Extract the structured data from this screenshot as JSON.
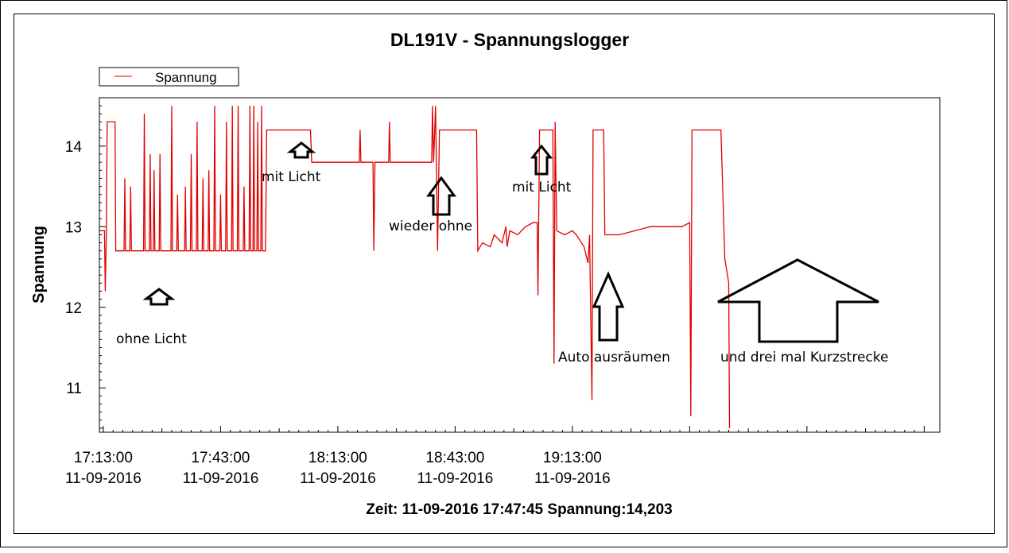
{
  "chart_data": {
    "type": "line",
    "title": "DL191V - Spannungslogger",
    "ylabel": "Spannung",
    "legend": {
      "entries": [
        "Spannung"
      ],
      "placement": "top-left"
    },
    "series_color": "#e00000",
    "ylim": [
      10.45,
      14.6
    ],
    "yticks": [
      11,
      12,
      13,
      14
    ],
    "xlim_minutes": [
      -1,
      214
    ],
    "xticks": [
      {
        "time": "17:13:00",
        "date": "11-09-2016",
        "minute": 0
      },
      {
        "time": "17:43:00",
        "date": "11-09-2016",
        "minute": 30
      },
      {
        "time": "18:13:00",
        "date": "11-09-2016",
        "minute": 60
      },
      {
        "time": "18:43:00",
        "date": "11-09-2016",
        "minute": 90
      },
      {
        "time": "19:13:00",
        "date": "11-09-2016",
        "minute": 120
      }
    ],
    "grid": false,
    "status_text": "Zeit: 11-09-2016 17:47:45 Spannung:14,203",
    "series": [
      {
        "name": "Spannung",
        "x": [
          -1,
          0,
          0.5,
          1,
          1.2,
          1.6,
          3,
          3.2,
          3.5,
          5,
          6,
          6.3,
          6.8,
          10,
          12,
          13.8,
          14.3,
          14.8,
          17.5,
          17.8,
          18.2,
          22,
          22.4,
          22.8,
          26,
          26.3,
          26.6,
          29,
          31,
          31.3,
          33,
          35,
          35.3,
          37,
          37.3,
          40,
          41,
          41.3,
          41.7,
          52,
          53,
          53.3,
          56,
          56.3,
          56.7,
          60,
          69,
          69.2,
          69.6,
          70,
          70.3,
          70.7,
          73,
          75,
          75.3,
          77,
          79,
          80,
          80.3,
          80.6,
          82,
          83,
          84,
          86,
          86.3,
          88,
          91,
          95,
          96,
          96.3,
          96.8,
          97.5,
          100,
          101,
          102,
          102.3,
          102.7,
          104,
          105,
          105.3,
          106,
          108,
          109,
          109.3,
          110,
          111,
          111.3,
          112,
          112.3,
          114,
          115,
          118,
          125,
          130,
          131,
          131.3,
          131.7,
          143,
          144,
          144.3,
          145,
          148
        ]
      }
    ]
  }
}
